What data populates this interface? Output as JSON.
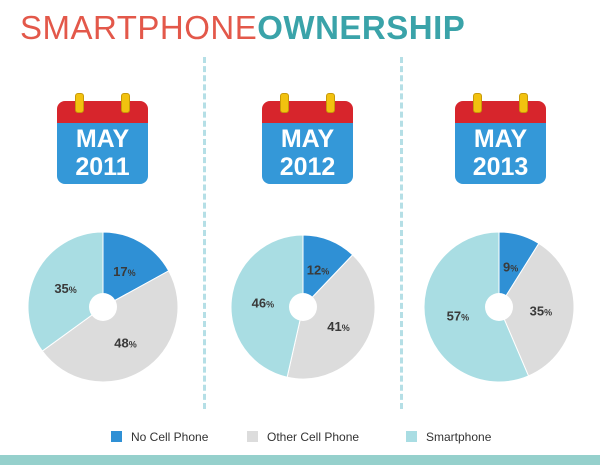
{
  "title": {
    "light": "SMARTPHONE",
    "bold": "OWNERSHIP"
  },
  "colors": {
    "title_light": "#e3584a",
    "title_bold": "#3aa3a9",
    "no_cell": "#2f90d5",
    "other_cell": "#dcdcdc",
    "smartphone": "#a9dde3",
    "calendar_top": "#d7252c",
    "calendar_body": "#3498d8",
    "calendar_ring": "#f2c20f",
    "divider": "#b5dfe6",
    "bottom_bar": "#95d0cc"
  },
  "calendars": [
    {
      "month": "MAY",
      "year": "2011"
    },
    {
      "month": "MAY",
      "year": "2012"
    },
    {
      "month": "MAY",
      "year": "2013"
    }
  ],
  "legend": [
    {
      "label": "No Cell Phone",
      "color": "#2f90d5"
    },
    {
      "label": "Other Cell Phone",
      "color": "#dcdcdc"
    },
    {
      "label": "Smartphone",
      "color": "#a9dde3"
    }
  ],
  "chart_data": [
    {
      "type": "pie",
      "title": "MAY 2011",
      "categories": [
        "No Cell Phone",
        "Other Cell Phone",
        "Smartphone"
      ],
      "values": [
        17,
        48,
        35
      ],
      "labels": [
        "17%",
        "48%",
        "35%"
      ]
    },
    {
      "type": "pie",
      "title": "MAY 2012",
      "categories": [
        "No Cell Phone",
        "Other Cell Phone",
        "Smartphone"
      ],
      "values": [
        12,
        41,
        46
      ],
      "labels": [
        "12%",
        "41%",
        "46%"
      ]
    },
    {
      "type": "pie",
      "title": "MAY 2013",
      "categories": [
        "No Cell Phone",
        "Other Cell Phone",
        "Smartphone"
      ],
      "values": [
        9,
        35,
        57
      ],
      "labels": [
        "9%",
        "35%",
        "57%"
      ]
    }
  ]
}
